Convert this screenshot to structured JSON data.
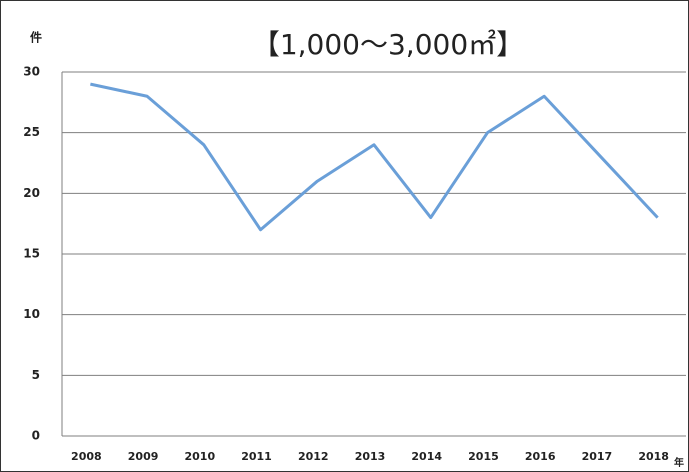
{
  "chart_data": {
    "type": "line",
    "title": "【1,000～3,000㎡】",
    "y_label": "件",
    "x_label": "年",
    "categories": [
      "2008",
      "2009",
      "2010",
      "2011",
      "2012",
      "2013",
      "2014",
      "2015",
      "2016",
      "2017",
      "2018"
    ],
    "series": [
      {
        "name": "1,000～3,000㎡",
        "color": "#6a9fd8",
        "values": [
          29,
          28,
          24,
          17,
          21,
          24,
          18,
          25,
          28,
          23,
          18
        ]
      }
    ],
    "ylim": [
      0,
      30
    ],
    "yticks": [
      0,
      5,
      10,
      15,
      20,
      25,
      30
    ],
    "grid": true
  }
}
